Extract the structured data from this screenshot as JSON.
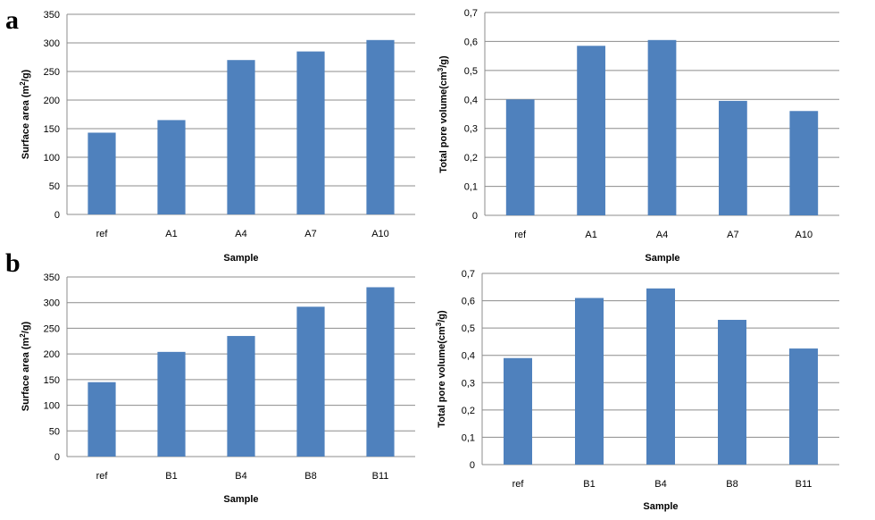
{
  "panel_labels": {
    "a": "a",
    "b": "b"
  },
  "colors": {
    "bar": "#4F81BD",
    "grid": "#8C8C8C",
    "axis": "#8C8C8C"
  },
  "chart_data": [
    {
      "id": "a-surface",
      "type": "bar",
      "categories": [
        "ref",
        "A1",
        "A4",
        "A7",
        "A10"
      ],
      "values": [
        143,
        165,
        270,
        285,
        305
      ],
      "xlabel": "Sample",
      "ylabel_parts": [
        "Surface area (m",
        "2",
        "/g)"
      ],
      "ylim": [
        0,
        350
      ],
      "yticks": [
        0,
        50,
        100,
        150,
        200,
        250,
        300,
        350
      ],
      "ytick_labels": [
        "0",
        "50",
        "100",
        "150",
        "200",
        "250",
        "300",
        "350"
      ],
      "grid": true
    },
    {
      "id": "a-volume",
      "type": "bar",
      "categories": [
        "ref",
        "A1",
        "A4",
        "A7",
        "A10"
      ],
      "values": [
        0.4,
        0.585,
        0.605,
        0.395,
        0.36
      ],
      "xlabel": "Sample",
      "ylabel_parts": [
        "Total pore volume(cm",
        "3",
        "/g)"
      ],
      "ylim": [
        0,
        0.7
      ],
      "yticks": [
        0,
        0.1,
        0.2,
        0.3,
        0.4,
        0.5,
        0.6,
        0.7
      ],
      "ytick_labels": [
        "0",
        "0,1",
        "0,2",
        "0,3",
        "0,4",
        "0,5",
        "0,6",
        "0,7"
      ],
      "grid": true
    },
    {
      "id": "b-surface",
      "type": "bar",
      "categories": [
        "ref",
        "B1",
        "B4",
        "B8",
        "B11"
      ],
      "values": [
        145,
        204,
        235,
        292,
        330
      ],
      "xlabel": "Sample",
      "ylabel_parts": [
        "Surface area (m",
        "2",
        "/g)"
      ],
      "ylim": [
        0,
        350
      ],
      "yticks": [
        0,
        50,
        100,
        150,
        200,
        250,
        300,
        350
      ],
      "ytick_labels": [
        "0",
        "50",
        "100",
        "150",
        "200",
        "250",
        "300",
        "350"
      ],
      "grid": true
    },
    {
      "id": "b-volume",
      "type": "bar",
      "categories": [
        "ref",
        "B1",
        "B4",
        "B8",
        "B11"
      ],
      "values": [
        0.39,
        0.61,
        0.645,
        0.53,
        0.425
      ],
      "xlabel": "Sample",
      "ylabel_parts": [
        "Total pore volume(cm",
        "3",
        "/g)"
      ],
      "ylim": [
        0,
        0.7
      ],
      "yticks": [
        0,
        0.1,
        0.2,
        0.3,
        0.4,
        0.5,
        0.6,
        0.7
      ],
      "ytick_labels": [
        "0",
        "0,1",
        "0,2",
        "0,3",
        "0,4",
        "0,5",
        "0,6",
        "0,7"
      ],
      "grid": true
    }
  ]
}
